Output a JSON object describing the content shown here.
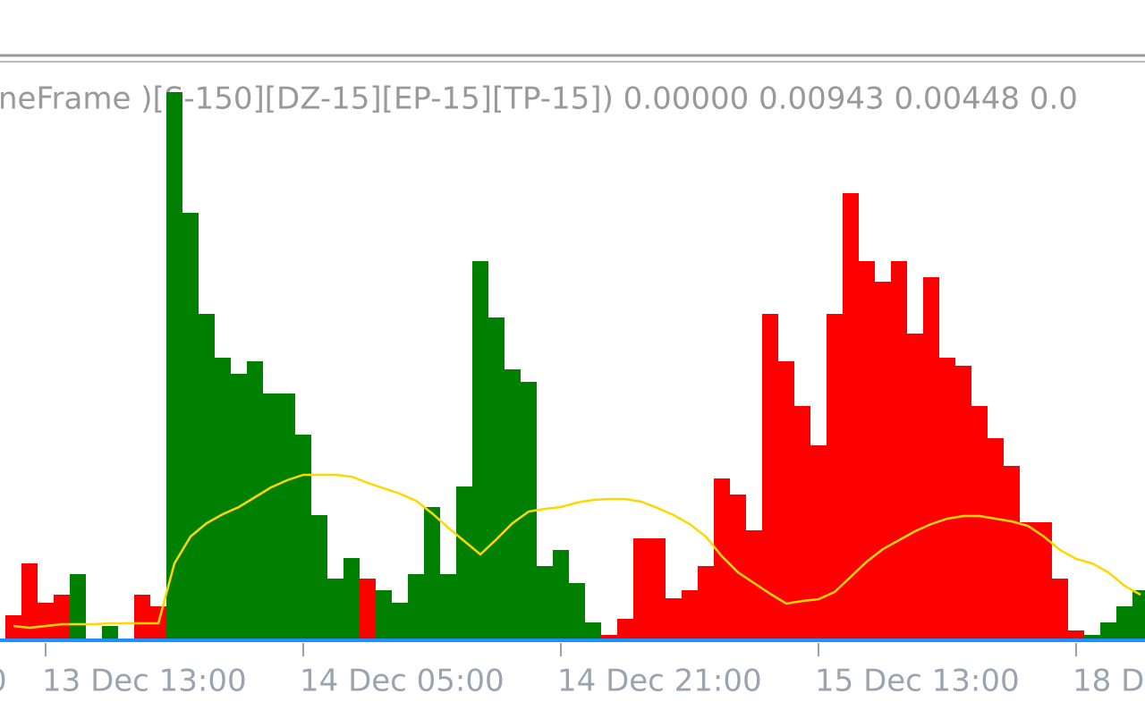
{
  "chart_data": {
    "type": "bar",
    "header": "neFrame )[S-150][DZ-15][EP-15][TP-15]) 0.00000 0.00943 0.00448 0.0",
    "edge_label": "0",
    "categories": [
      null,
      null,
      "13 Dec 13:00",
      null,
      null,
      null,
      null,
      null,
      null,
      null,
      null,
      null,
      null,
      null,
      null,
      null,
      null,
      null,
      "14 Dec 05:00",
      null,
      null,
      null,
      null,
      null,
      null,
      null,
      null,
      null,
      null,
      null,
      null,
      null,
      null,
      null,
      "14 Dec 21:00",
      null,
      null,
      null,
      null,
      null,
      null,
      null,
      null,
      null,
      null,
      null,
      null,
      null,
      null,
      null,
      "15 Dec 13:00",
      null,
      null,
      null,
      null,
      null,
      null,
      null,
      null,
      null,
      null,
      null,
      null,
      null,
      null,
      null,
      "18 D",
      null,
      null,
      null,
      null
    ],
    "series": [
      {
        "color": "#008000",
        "values": [
          null,
          null,
          null,
          null,
          72,
          null,
          14,
          null,
          null,
          null,
          611,
          476,
          363,
          314,
          296,
          310,
          274,
          274,
          228,
          138,
          67,
          90,
          null,
          54,
          40,
          72,
          147,
          72,
          170,
          422,
          359,
          301,
          287,
          81,
          99,
          62,
          18,
          null,
          null,
          null,
          null,
          null,
          null,
          null,
          null,
          null,
          null,
          null,
          null,
          null,
          null,
          null,
          null,
          null,
          null,
          null,
          null,
          null,
          null,
          null,
          null,
          null,
          null,
          null,
          null,
          null,
          null,
          4,
          18,
          36,
          54
        ]
      },
      {
        "color": "#ff0000",
        "values": [
          26,
          84,
          40,
          49,
          null,
          null,
          null,
          null,
          49,
          36,
          null,
          null,
          null,
          null,
          null,
          null,
          null,
          null,
          null,
          null,
          null,
          null,
          67,
          null,
          null,
          null,
          null,
          null,
          null,
          null,
          null,
          null,
          null,
          null,
          null,
          null,
          null,
          4,
          22,
          112,
          112,
          45,
          54,
          81,
          179,
          161,
          121,
          363,
          310,
          260,
          216,
          363,
          498,
          422,
          399,
          422,
          341,
          404,
          314,
          305,
          260,
          224,
          193,
          130,
          130,
          67,
          9,
          null,
          null,
          null,
          null
        ]
      }
    ],
    "line": {
      "color": "#ffd700",
      "values": [
        14,
        12,
        14,
        16,
        16,
        16,
        17,
        17,
        17,
        17,
        84,
        114,
        129,
        139,
        147,
        158,
        169,
        177,
        183,
        183,
        183,
        181,
        174,
        168,
        162,
        154,
        140,
        124,
        109,
        94,
        111,
        129,
        142,
        145,
        147,
        152,
        155,
        156,
        156,
        153,
        146,
        138,
        128,
        114,
        92,
        74,
        62,
        50,
        39,
        42,
        44,
        52,
        69,
        86,
        100,
        110,
        120,
        128,
        134,
        137,
        137,
        134,
        131,
        126,
        114,
        99,
        89,
        84,
        74,
        59,
        49
      ]
    },
    "ylim": [
      0,
      614
    ],
    "baseline_color": "#1e90ff"
  }
}
